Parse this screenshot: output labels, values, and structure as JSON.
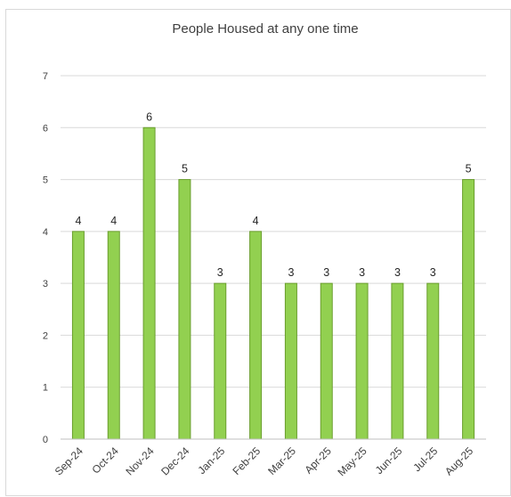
{
  "chart_data": {
    "type": "bar",
    "title": "People Housed at any one time",
    "xlabel": "",
    "ylabel": "",
    "categories": [
      "Sep-24",
      "Oct-24",
      "Nov-24",
      "Dec-24",
      "Jan-25",
      "Feb-25",
      "Mar-25",
      "Apr-25",
      "May-25",
      "Jun-25",
      "Jul-25",
      "Aug-25"
    ],
    "values": [
      4,
      4,
      6,
      5,
      3,
      4,
      3,
      3,
      3,
      3,
      3,
      5
    ],
    "ylim": [
      0,
      7
    ],
    "yticks": [
      "0",
      "1",
      "2",
      "3",
      "4",
      "5",
      "6",
      "7"
    ],
    "data_labels": true,
    "grid": true,
    "legend": "none",
    "colors": {
      "bar_fill": "#92d050",
      "bar_stroke": "#6a9e2e",
      "grid": "#d9d9d9",
      "axis": "#bfbfbf"
    }
  }
}
